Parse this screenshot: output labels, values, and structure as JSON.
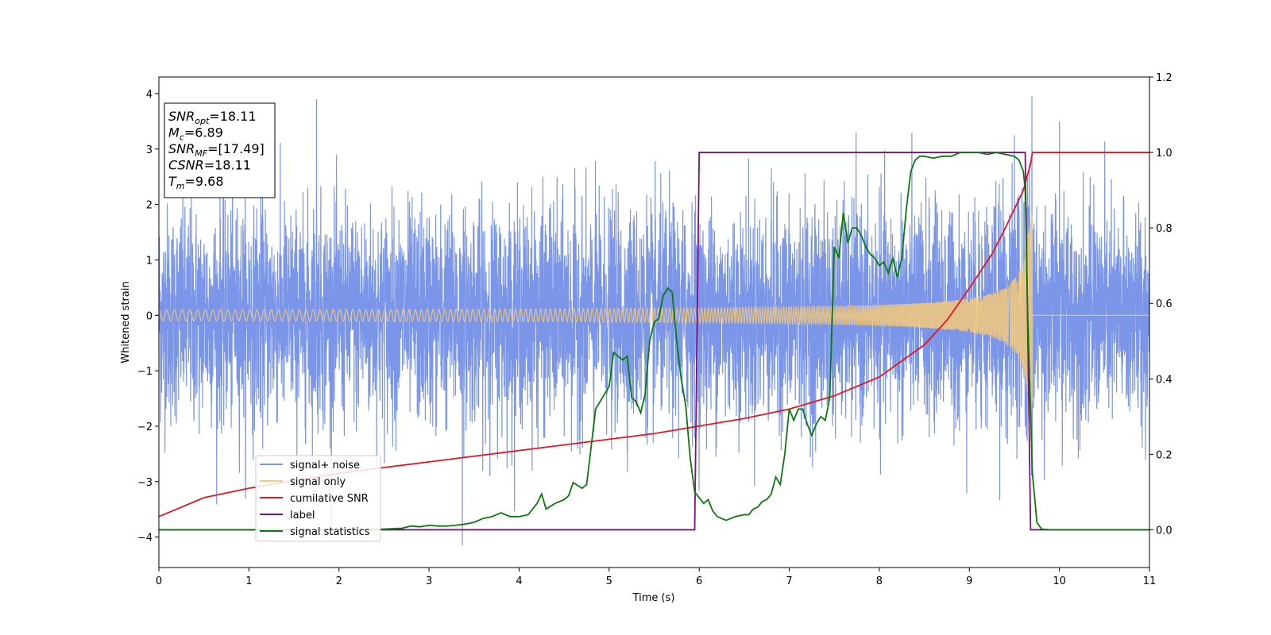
{
  "chart_data": {
    "type": "line",
    "xlabel": "Time (s)",
    "ylabel": "Whitened strain",
    "xlim": [
      0,
      11
    ],
    "ylim": [
      -4.55,
      4.3
    ],
    "y2lim": [
      -0.1,
      1.2
    ],
    "xticks": [
      0,
      1,
      2,
      3,
      4,
      5,
      6,
      7,
      8,
      9,
      10,
      11
    ],
    "yticks": [
      -4,
      -3,
      -2,
      -1,
      0,
      1,
      2,
      3,
      4
    ],
    "y2ticks": [
      0.0,
      0.2,
      0.4,
      0.6,
      0.8,
      1.0,
      1.2
    ],
    "grid": false,
    "legend_position": "lower-left",
    "annotation": [
      {
        "base": "SNR",
        "sub": "opt",
        "value": "=18.11"
      },
      {
        "base": "M",
        "sub": "c",
        "value": "=6.89"
      },
      {
        "base": "SNR",
        "sub": "MF",
        "value": "=[17.49]"
      },
      {
        "base": "CSNR",
        "sub": "",
        "value": "=18.11"
      },
      {
        "base": "T",
        "sub": "m",
        "value": "=9.68"
      }
    ],
    "series": [
      {
        "name": "signal+ noise",
        "color": "#7b96e8",
        "axis": "left",
        "kind": "noise",
        "noise_sigma": 1.0,
        "spikes": [
          [
            1.75,
            3.9
          ],
          [
            3.37,
            -4.15
          ],
          [
            10.0,
            3.5
          ],
          [
            9.5,
            3.25
          ]
        ]
      },
      {
        "name": "signal only",
        "color": "#f5c97a",
        "axis": "left",
        "kind": "chirp",
        "merger_time": 9.68,
        "amplitude_start": 0.07,
        "amplitude_peak": 2.1,
        "ringdown_end": 9.7
      },
      {
        "name": "cumilative SNR",
        "color": "#e8151b",
        "axis": "right",
        "x": [
          0,
          0.5,
          1,
          1.5,
          2,
          2.5,
          3,
          3.5,
          4,
          4.5,
          5,
          5.5,
          6,
          6.5,
          7,
          7.5,
          8,
          8.5,
          8.75,
          9,
          9.25,
          9.4,
          9.5,
          9.6,
          9.68,
          9.7,
          11
        ],
        "y": [
          0.035,
          0.085,
          0.11,
          0.13,
          0.15,
          0.165,
          0.18,
          0.195,
          0.21,
          0.225,
          0.24,
          0.255,
          0.275,
          0.295,
          0.32,
          0.355,
          0.405,
          0.49,
          0.555,
          0.64,
          0.73,
          0.8,
          0.85,
          0.9,
          0.97,
          1.0,
          1.0
        ]
      },
      {
        "name": "label",
        "color": "#800f80",
        "axis": "right",
        "x": [
          0,
          5.95,
          6.0,
          9.62,
          9.68,
          11
        ],
        "y": [
          0.0,
          0.0,
          1.0,
          1.0,
          0.0,
          0.0
        ]
      },
      {
        "name": "signal statistics",
        "color": "#0a7a0a",
        "axis": "right",
        "x": [
          0,
          1,
          2,
          2.5,
          2.7,
          2.8,
          2.9,
          3.0,
          3.1,
          3.2,
          3.3,
          3.4,
          3.5,
          3.6,
          3.7,
          3.8,
          3.9,
          4.0,
          4.1,
          4.2,
          4.25,
          4.3,
          4.4,
          4.5,
          4.55,
          4.6,
          4.7,
          4.75,
          4.8,
          4.85,
          4.9,
          5.0,
          5.05,
          5.1,
          5.15,
          5.2,
          5.25,
          5.3,
          5.35,
          5.4,
          5.45,
          5.5,
          5.55,
          5.6,
          5.65,
          5.7,
          5.75,
          5.8,
          5.85,
          5.9,
          5.95,
          6.05,
          6.1,
          6.15,
          6.2,
          6.3,
          6.4,
          6.5,
          6.55,
          6.6,
          6.65,
          6.7,
          6.75,
          6.8,
          6.85,
          6.9,
          6.95,
          7.0,
          7.05,
          7.1,
          7.15,
          7.2,
          7.25,
          7.3,
          7.35,
          7.4,
          7.45,
          7.5,
          7.55,
          7.6,
          7.65,
          7.7,
          7.75,
          7.8,
          7.85,
          7.9,
          7.95,
          8.0,
          8.05,
          8.1,
          8.15,
          8.2,
          8.25,
          8.3,
          8.35,
          8.4,
          8.45,
          8.5,
          8.6,
          8.7,
          8.8,
          8.9,
          9.0,
          9.1,
          9.2,
          9.3,
          9.4,
          9.5,
          9.55,
          9.6,
          9.62,
          9.65,
          9.7,
          9.75,
          9.8,
          9.9,
          10,
          11
        ],
        "y": [
          0.0,
          0.0,
          0.0,
          0.002,
          0.004,
          0.01,
          0.008,
          0.012,
          0.01,
          0.01,
          0.012,
          0.015,
          0.02,
          0.03,
          0.035,
          0.045,
          0.035,
          0.035,
          0.04,
          0.07,
          0.095,
          0.055,
          0.07,
          0.08,
          0.09,
          0.125,
          0.11,
          0.12,
          0.22,
          0.32,
          0.34,
          0.38,
          0.47,
          0.46,
          0.45,
          0.46,
          0.35,
          0.34,
          0.31,
          0.36,
          0.5,
          0.55,
          0.56,
          0.62,
          0.64,
          0.63,
          0.5,
          0.4,
          0.33,
          0.19,
          0.1,
          0.07,
          0.08,
          0.05,
          0.035,
          0.025,
          0.035,
          0.04,
          0.04,
          0.055,
          0.06,
          0.075,
          0.08,
          0.095,
          0.14,
          0.12,
          0.2,
          0.32,
          0.29,
          0.32,
          0.32,
          0.28,
          0.25,
          0.28,
          0.3,
          0.29,
          0.35,
          0.75,
          0.72,
          0.84,
          0.76,
          0.8,
          0.8,
          0.78,
          0.75,
          0.73,
          0.72,
          0.7,
          0.71,
          0.68,
          0.72,
          0.67,
          0.72,
          0.85,
          0.95,
          0.98,
          0.99,
          0.99,
          0.985,
          0.99,
          0.99,
          1.0,
          1.0,
          1.0,
          0.995,
          1.0,
          0.995,
          0.99,
          0.98,
          0.95,
          0.9,
          0.55,
          0.15,
          0.02,
          0.002,
          0.0,
          0.0,
          0.0
        ]
      }
    ]
  }
}
